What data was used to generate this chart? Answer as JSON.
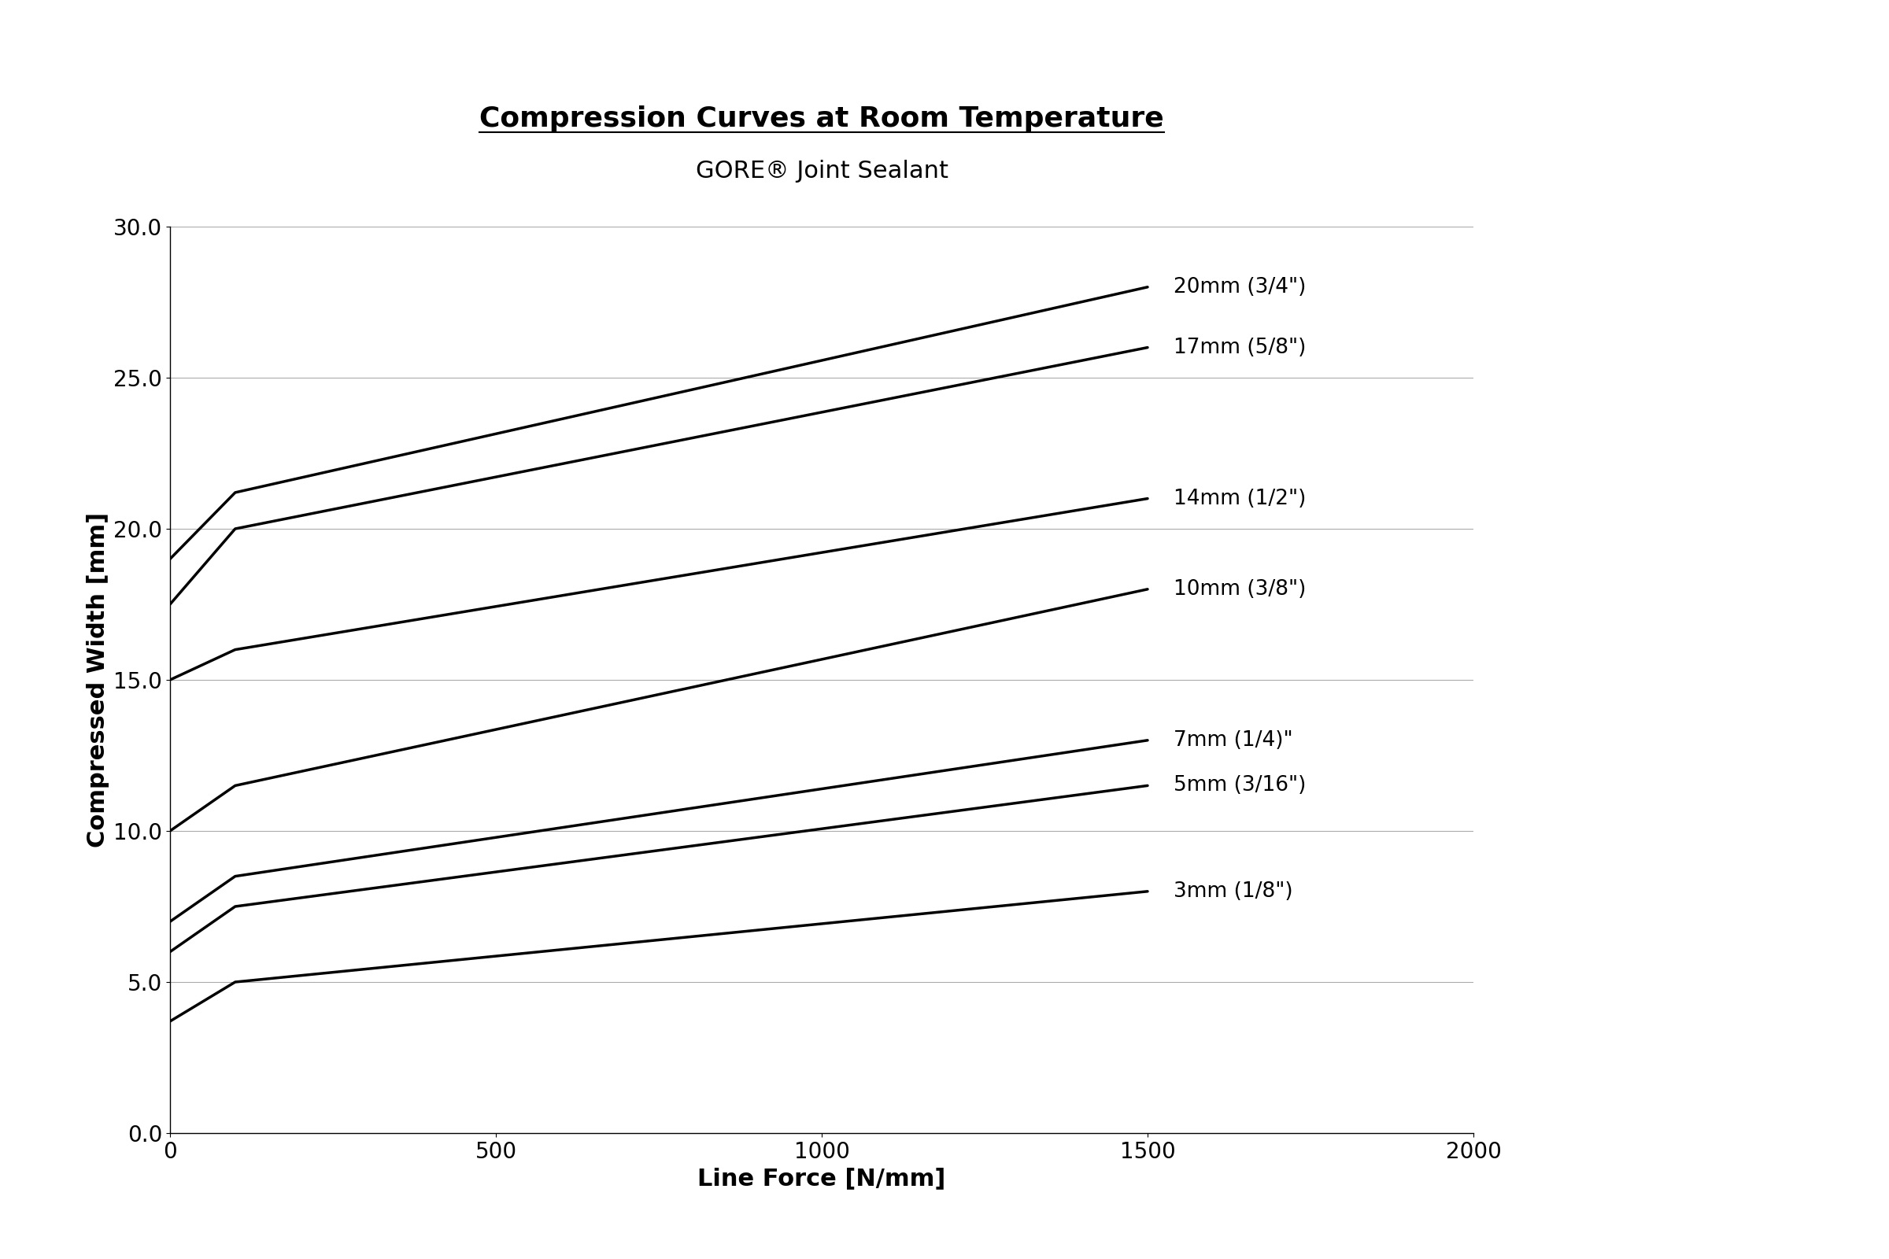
{
  "title": "Compression Curves at Room Temperature",
  "subtitle": "GORE® Joint Sealant",
  "xlabel": "Line Force [N/mm]",
  "ylabel": "Compressed Width [mm]",
  "xlim": [
    0,
    2000
  ],
  "ylim": [
    0.0,
    30.0
  ],
  "xticks": [
    0,
    500,
    1000,
    1500,
    2000
  ],
  "yticks": [
    0.0,
    5.0,
    10.0,
    15.0,
    20.0,
    25.0,
    30.0
  ],
  "background_color": "#ffffff",
  "line_color": "#000000",
  "line_width": 2.5,
  "grid_color": "#aaaaaa",
  "series": [
    {
      "label": "20mm (3/4\")",
      "x": [
        0,
        100,
        1500
      ],
      "y": [
        19.0,
        21.2,
        28.0
      ]
    },
    {
      "label": "17mm (5/8\")",
      "x": [
        0,
        100,
        1500
      ],
      "y": [
        17.5,
        20.0,
        26.0
      ]
    },
    {
      "label": "14mm (1/2\")",
      "x": [
        0,
        100,
        1500
      ],
      "y": [
        15.0,
        16.0,
        21.0
      ]
    },
    {
      "label": "10mm (3/8\")",
      "x": [
        0,
        100,
        1500
      ],
      "y": [
        10.0,
        11.5,
        18.0
      ]
    },
    {
      "label": "7mm (1/4)\"",
      "x": [
        0,
        100,
        1500
      ],
      "y": [
        7.0,
        8.5,
        13.0
      ]
    },
    {
      "label": "5mm (3/16\")",
      "x": [
        0,
        100,
        1500
      ],
      "y": [
        6.0,
        7.5,
        11.5
      ]
    },
    {
      "label": "3mm (1/8\")",
      "x": [
        0,
        100,
        1500
      ],
      "y": [
        3.7,
        5.0,
        8.0
      ]
    }
  ],
  "title_fontsize": 26,
  "subtitle_fontsize": 22,
  "axis_label_fontsize": 22,
  "tick_fontsize": 20,
  "annotation_fontsize": 19
}
